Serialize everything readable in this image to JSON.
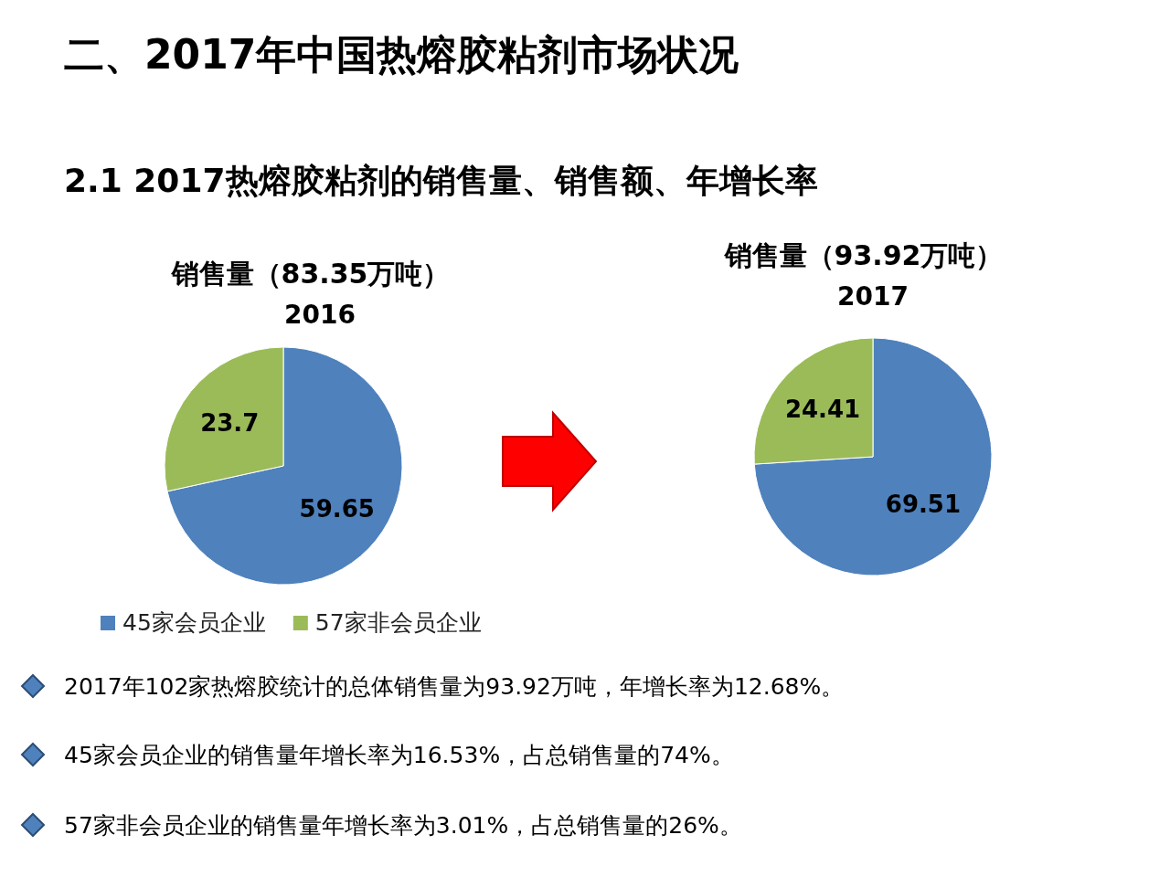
{
  "chart_data": [
    {
      "type": "other",
      "title": "二、2017年中国热熔胶粘剂市场状况",
      "subtitle": "2.1  2017热熔胶粘剂的销售量、销售额、年增长率",
      "annotations": [
        "2017年102家热熔胶统计的总体销售量为93.92万吨，年增长率为12.68%。",
        "45家会员企业的销售量年增长率为16.53%，占总销售量的74%。",
        "57家非会员企业的销售量年增长率为3.01%，占总销售量的26%。"
      ]
    },
    {
      "type": "pie",
      "title": "销售量（83.35万吨）",
      "subtitle": "2016",
      "categories": [
        "45家会员企业",
        "57家非会员企业"
      ],
      "values": [
        59.65,
        23.7
      ],
      "colors": [
        "#4f81bd",
        "#9bbb59"
      ],
      "data_labels": true,
      "legend": "bottom"
    },
    {
      "type": "pie",
      "title": "销售量（93.92万吨）",
      "subtitle": "2017",
      "categories": [
        null,
        null
      ],
      "values": [
        69.51,
        24.41
      ],
      "colors": [
        "#4f81bd",
        "#9bbb59"
      ],
      "data_labels": true
    }
  ]
}
